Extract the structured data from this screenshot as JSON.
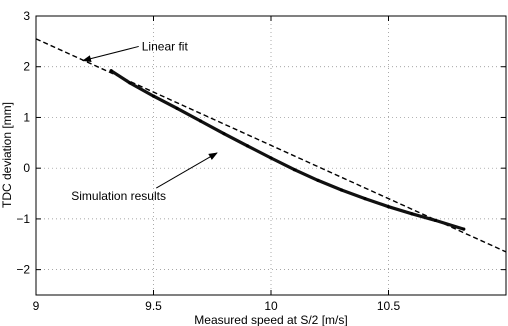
{
  "chart_data": {
    "type": "scatter",
    "xlabel": "Measured speed at S/2 [m/s]",
    "ylabel": "TDC deviation [mm]",
    "xlim": [
      9,
      11
    ],
    "ylim": [
      -2.5,
      3
    ],
    "x_ticks": [
      9,
      9.5,
      10,
      10.5
    ],
    "x_tick_labels": [
      "9",
      "9.5",
      "10",
      "10.5"
    ],
    "y_ticks": [
      -2,
      -1,
      0,
      1,
      2,
      3
    ],
    "y_tick_labels": [
      "−2",
      "−1",
      "0",
      "1",
      "2",
      "3"
    ],
    "grid": true,
    "series": [
      {
        "style": "dashed-line",
        "x": [
          9,
          11
        ],
        "y": [
          2.55,
          -1.65
        ]
      },
      {
        "style": "dense-points",
        "x": [
          9.32,
          9.4,
          9.5,
          9.6,
          9.7,
          9.8,
          9.9,
          10.0,
          10.1,
          10.2,
          10.3,
          10.4,
          10.5,
          10.6,
          10.7,
          10.82
        ],
        "y": [
          1.92,
          1.68,
          1.42,
          1.18,
          0.93,
          0.68,
          0.44,
          0.2,
          -0.03,
          -0.24,
          -0.43,
          -0.6,
          -0.76,
          -0.9,
          -1.03,
          -1.2
        ]
      }
    ],
    "annotations": [
      {
        "text": "Linear fit",
        "x_text": 9.45,
        "y_text": 2.4,
        "x_arrow": 9.2,
        "y_arrow": 2.12
      },
      {
        "text": "Simulation results",
        "x_text": 9.15,
        "y_text": -0.55,
        "x_arrow": 9.77,
        "y_arrow": 0.3
      }
    ]
  }
}
